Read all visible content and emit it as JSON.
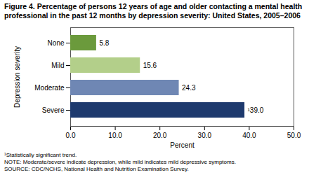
{
  "chart_data": {
    "type": "bar",
    "title": "Figure 4. Percentage of persons 12 years of age and older contacting a mental health professional in the past 12 months by depression severity: United States, 2005–2006",
    "orientation": "horizontal",
    "categories": [
      "None",
      "Mild",
      "Moderate",
      "Severe"
    ],
    "values": [
      5.8,
      15.6,
      24.3,
      39.0
    ],
    "value_labels": [
      "5.8",
      "15.6",
      "24.3",
      "¹39.0"
    ],
    "data_labels": true,
    "colors": [
      "#6b9a3c",
      "#b3cf8a",
      "#6f87b4",
      "#1e3a6e"
    ],
    "xlabel": "Percent",
    "ylabel": "Depression severity",
    "xlim": [
      0,
      50
    ],
    "xticks": [
      {
        "value": 0,
        "label": "0.0"
      },
      {
        "value": 10,
        "label": "10.0"
      },
      {
        "value": 20,
        "label": "20.0"
      },
      {
        "value": 30,
        "label": "30.0"
      },
      {
        "value": 40,
        "label": "40.0"
      },
      {
        "value": 50,
        "label": "50.0"
      }
    ],
    "grid": false,
    "annotations": [
      "¹Statistically significant trend.",
      "NOTE: Moderate/severe indicate depression, while mild indicates mild depressive symptoms.",
      "SOURCE: CDC/NCHS, National Health and Nutrition Examination Survey."
    ]
  }
}
